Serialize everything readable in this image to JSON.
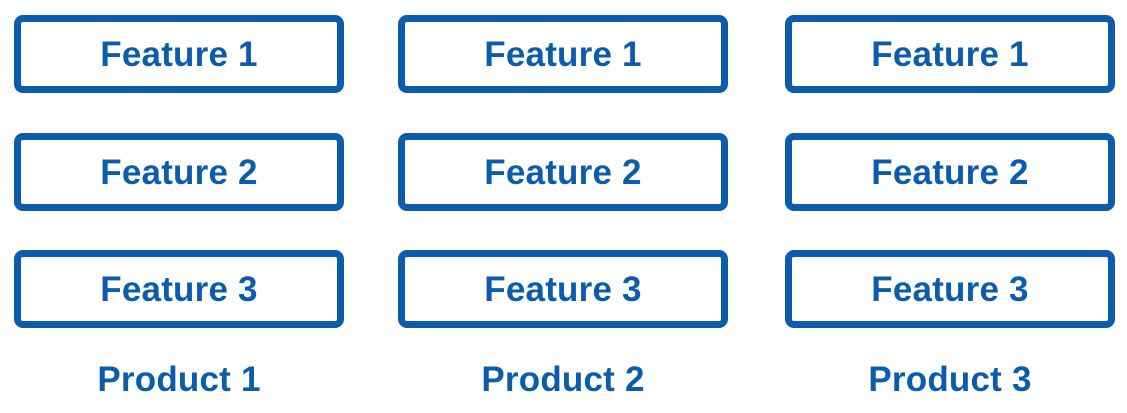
{
  "accent_color": "#0b5cad",
  "products": [
    {
      "label": "Product 1",
      "features": [
        "Feature 1",
        "Feature 2",
        "Feature 3"
      ]
    },
    {
      "label": "Product 2",
      "features": [
        "Feature 1",
        "Feature 2",
        "Feature 3"
      ]
    },
    {
      "label": "Product 3",
      "features": [
        "Feature 1",
        "Feature 2",
        "Feature 3"
      ]
    }
  ]
}
